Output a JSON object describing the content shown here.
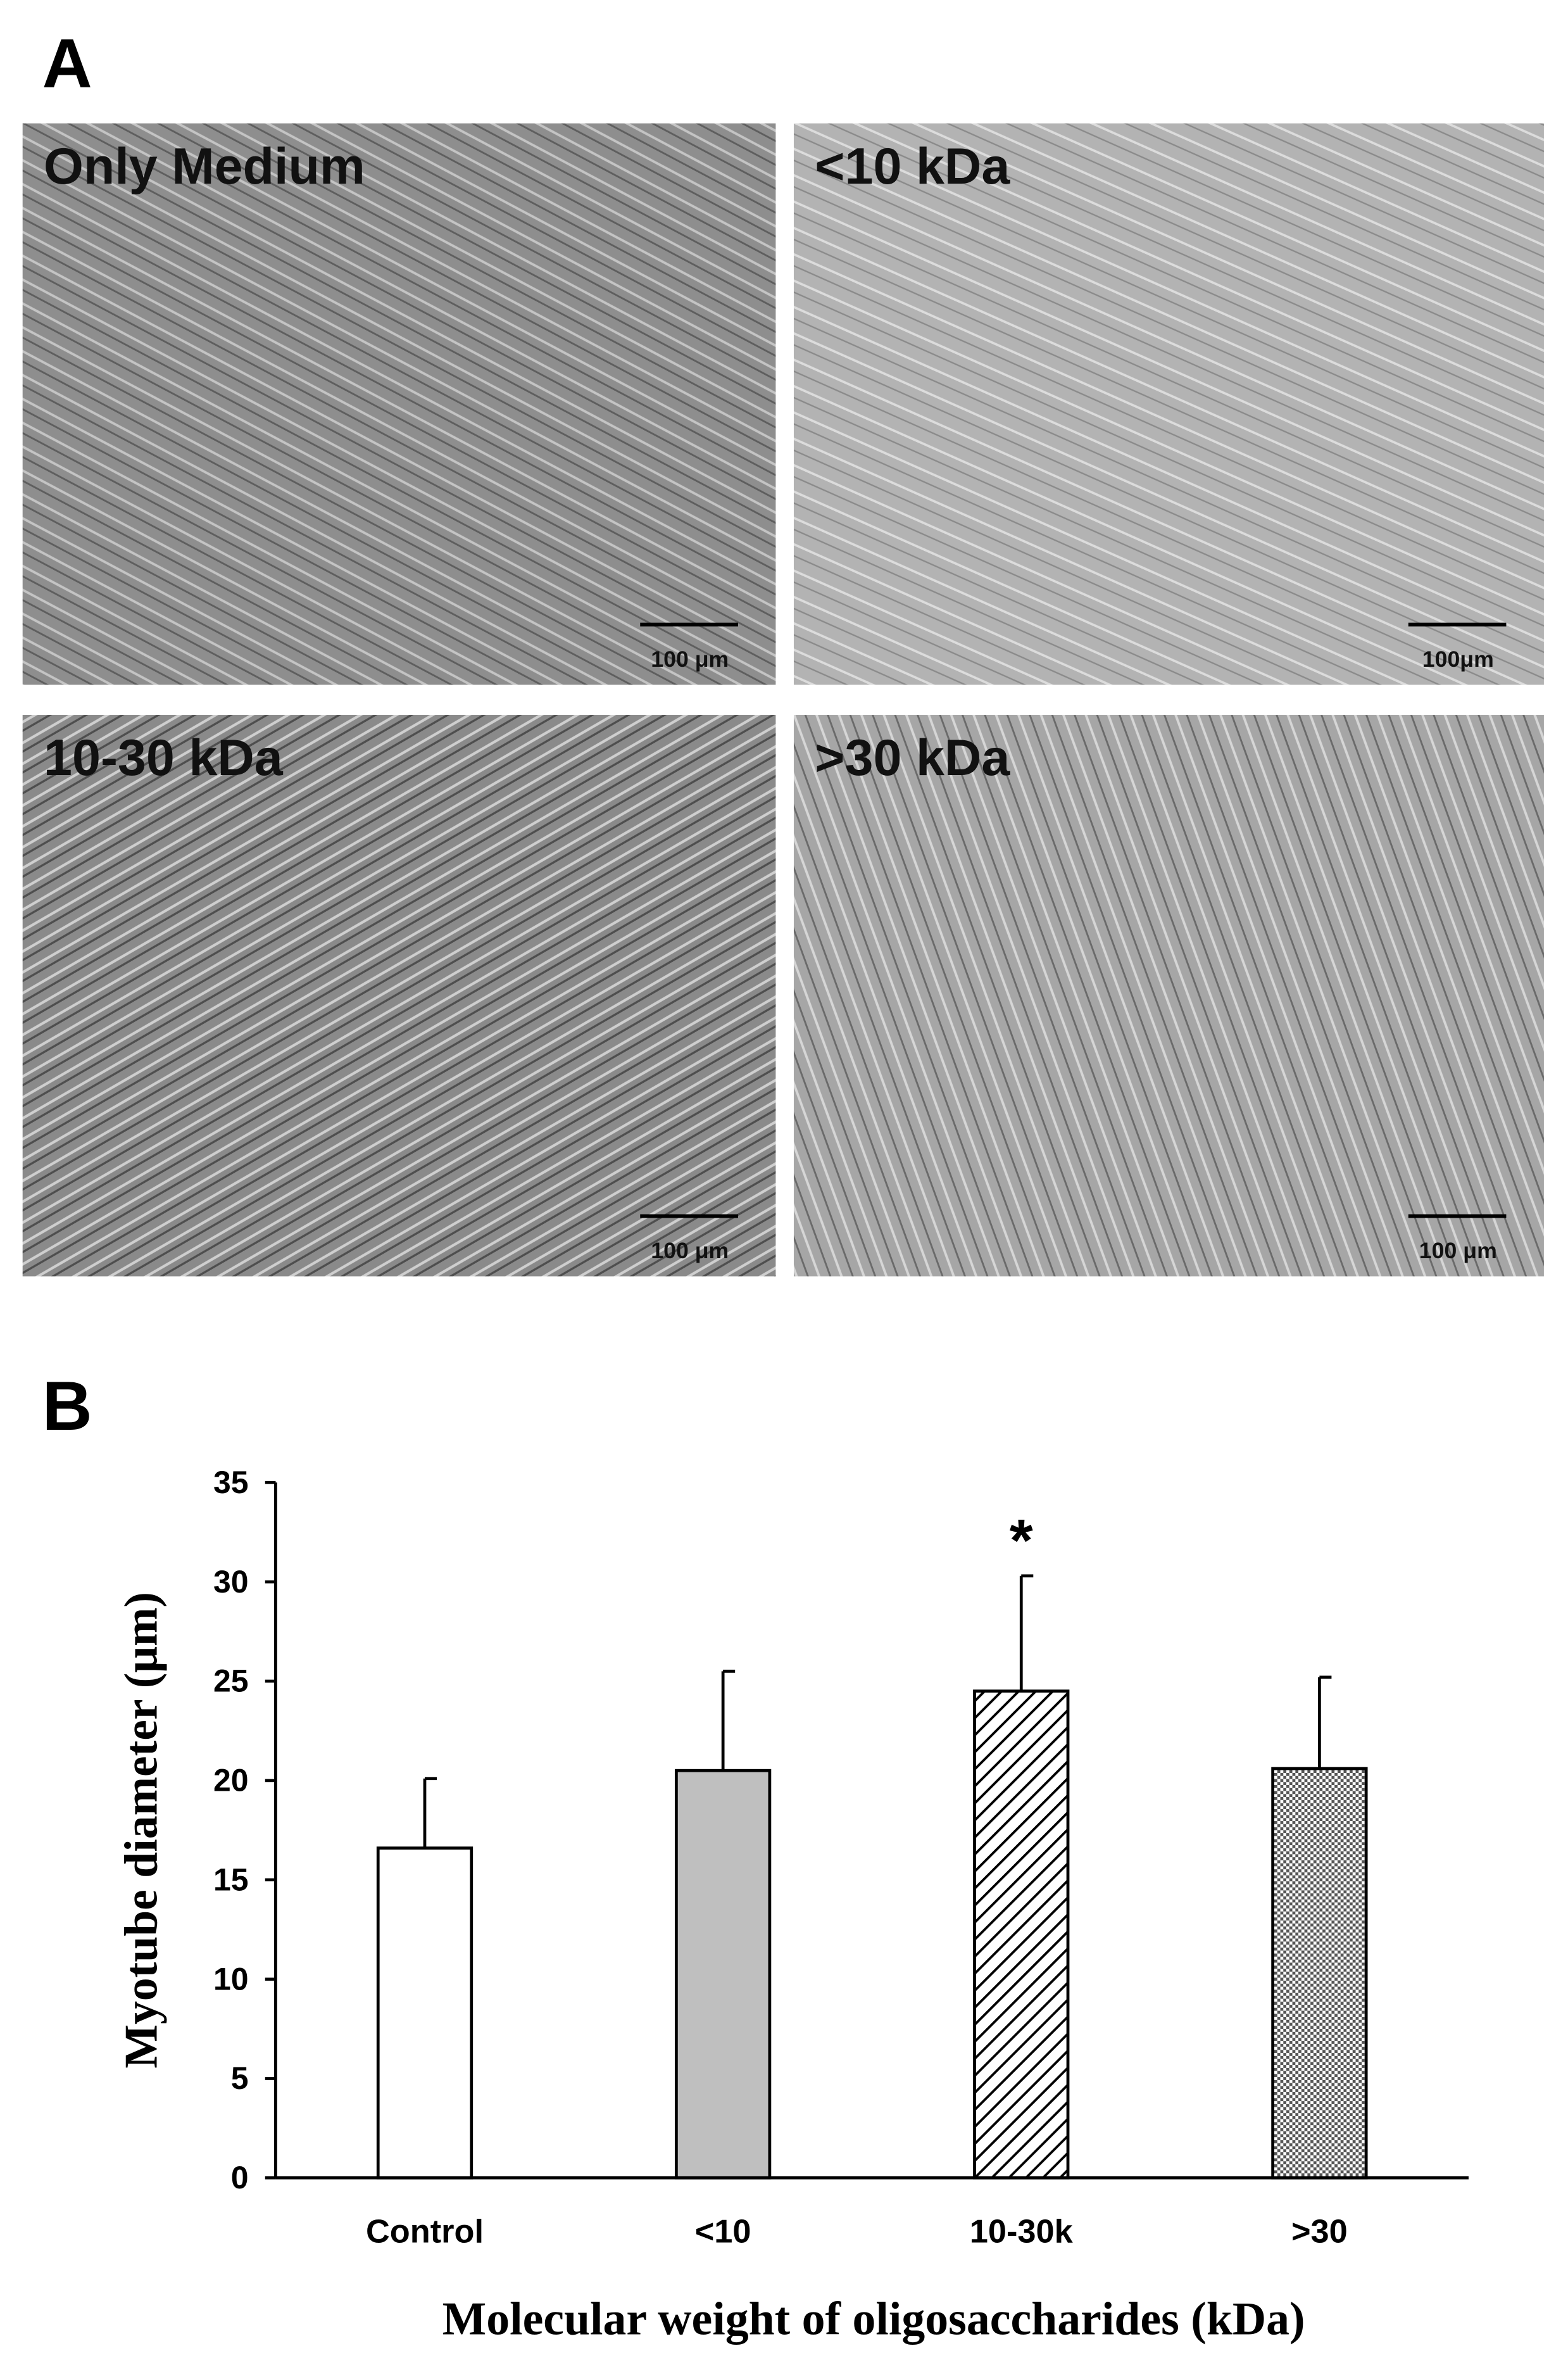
{
  "panel_a": {
    "label": "A",
    "images": [
      {
        "label": "Only Medium",
        "scale_bar": "100 μm"
      },
      {
        "label": "<10 kDa",
        "scale_bar": "100μm"
      },
      {
        "label": "10-30 kDa",
        "scale_bar": "100 μm"
      },
      {
        "label": ">30 kDa",
        "scale_bar": "100 μm"
      }
    ]
  },
  "panel_b": {
    "label": "B"
  },
  "chart_data": {
    "type": "bar",
    "categories": [
      "Control",
      "<10",
      "10-30k",
      ">30"
    ],
    "values": [
      16.6,
      20.5,
      24.5,
      20.6
    ],
    "errors": [
      3.5,
      5.0,
      5.8,
      4.6
    ],
    "fills": [
      "#ffffff",
      "#bfbfbf",
      "diagonal-hatch",
      "dot-hatch"
    ],
    "ylim": [
      0,
      35
    ],
    "yticks": [
      0,
      5,
      10,
      15,
      20,
      25,
      30,
      35
    ],
    "ylabel": "Myotube diameter (μm)",
    "xlabel": "Molecular weight of oligosaccharides (kDa)",
    "annotations": [
      {
        "text": "*",
        "category": "10-30k"
      }
    ]
  }
}
